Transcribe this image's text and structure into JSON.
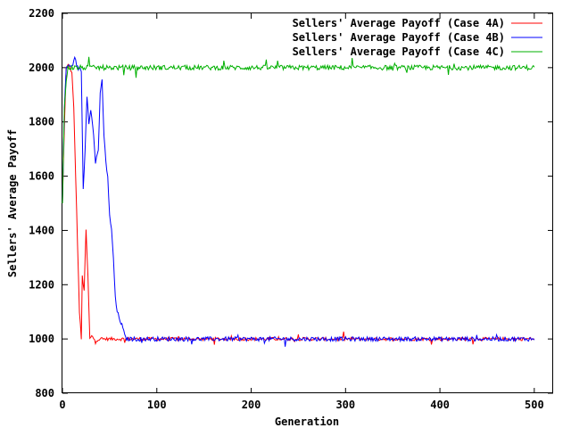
{
  "chart_data": {
    "type": "line",
    "title": "",
    "xlabel": "Generation",
    "ylabel": "Sellers' Average Payoff",
    "xlim": [
      0,
      520
    ],
    "ylim": [
      800,
      2200
    ],
    "x_ticks": [
      "0",
      "100",
      "200",
      "300",
      "400",
      "500"
    ],
    "y_ticks": [
      "800",
      "1000",
      "1200",
      "1400",
      "1600",
      "1800",
      "2000",
      "2200"
    ],
    "grid": false,
    "legend_position": "top-right",
    "x_range_of_series": [
      0,
      500
    ],
    "series": [
      {
        "name": "Sellers' Average Payoff (Case 4A)",
        "color": "#ff0000",
        "keypoints": [
          [
            0,
            1500
          ],
          [
            2,
            1780
          ],
          [
            4,
            2000
          ],
          [
            6,
            2010
          ],
          [
            8,
            2000
          ],
          [
            10,
            1980
          ],
          [
            12,
            1850
          ],
          [
            14,
            1600
          ],
          [
            16,
            1350
          ],
          [
            18,
            1100
          ],
          [
            20,
            1000
          ],
          [
            21,
            1230
          ],
          [
            23,
            1180
          ],
          [
            25,
            1400
          ],
          [
            27,
            1230
          ],
          [
            29,
            1000
          ],
          [
            31,
            1010
          ],
          [
            35,
            995
          ],
          [
            40,
            1000
          ],
          [
            500,
            1000
          ]
        ],
        "noise": 6
      },
      {
        "name": "Sellers' Average Payoff (Case 4B)",
        "color": "#0000ff",
        "keypoints": [
          [
            0,
            1500
          ],
          [
            2,
            1850
          ],
          [
            4,
            2000
          ],
          [
            6,
            2010
          ],
          [
            8,
            2000
          ],
          [
            12,
            2020
          ],
          [
            16,
            2000
          ],
          [
            20,
            1990
          ],
          [
            22,
            1550
          ],
          [
            24,
            1700
          ],
          [
            26,
            1900
          ],
          [
            28,
            1800
          ],
          [
            30,
            1850
          ],
          [
            33,
            1750
          ],
          [
            35,
            1650
          ],
          [
            38,
            1700
          ],
          [
            40,
            1900
          ],
          [
            42,
            1950
          ],
          [
            44,
            1750
          ],
          [
            46,
            1650
          ],
          [
            48,
            1600
          ],
          [
            50,
            1450
          ],
          [
            52,
            1400
          ],
          [
            54,
            1300
          ],
          [
            56,
            1150
          ],
          [
            58,
            1100
          ],
          [
            60,
            1080
          ],
          [
            62,
            1060
          ],
          [
            64,
            1040
          ],
          [
            66,
            1010
          ],
          [
            68,
            1000
          ],
          [
            500,
            1000
          ]
        ],
        "noise": 8
      },
      {
        "name": "Sellers' Average Payoff (Case 4C)",
        "color": "#00b000",
        "keypoints": [
          [
            0,
            1500
          ],
          [
            2,
            1850
          ],
          [
            4,
            1950
          ],
          [
            6,
            2000
          ],
          [
            500,
            2000
          ]
        ],
        "noise": 9
      }
    ]
  }
}
